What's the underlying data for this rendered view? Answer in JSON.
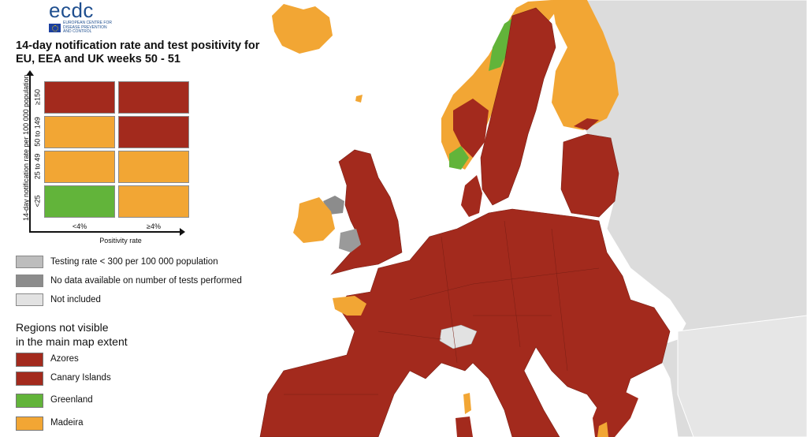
{
  "colors": {
    "red": "#a32a1d",
    "orange": "#f2a634",
    "green": "#62b43a",
    "light_grey": "#bdbdbd",
    "dark_grey": "#8c8c8c",
    "not_included": "#e2e2e2",
    "sea": "#ffffff",
    "outside": "#dcdcdc"
  },
  "logo": {
    "name": "ecdc",
    "subtitle": "EUROPEAN CENTRE FOR\nDISEASE PREVENTION\nAND CONTROL"
  },
  "title": "14-day notification rate and test positivity for EU, EEA and UK weeks 50 - 51",
  "matrix": {
    "y_axis_label": "14-day notification rate per 100 000 population",
    "x_axis_label": "Positivity rate",
    "rows": [
      "≥150",
      "50 to 149",
      "25 to 49",
      "<25"
    ],
    "cols": [
      "<4%",
      "≥4%"
    ],
    "cells": [
      [
        "red",
        "red"
      ],
      [
        "orange",
        "red"
      ],
      [
        "orange",
        "orange"
      ],
      [
        "green",
        "orange"
      ]
    ]
  },
  "legend": [
    {
      "label": "Testing rate < 300 per 100 000 population",
      "color": "light_grey"
    },
    {
      "label": "No data available on number of tests performed",
      "color": "dark_grey"
    },
    {
      "label": "Not included",
      "color": "not_included"
    }
  ],
  "regions": {
    "heading_line1": "Regions not visible",
    "heading_line2": "in the main map extent",
    "items": [
      {
        "label": "Azores",
        "color": "red"
      },
      {
        "label": "Canary Islands",
        "color": "red"
      },
      {
        "label": "Greenland",
        "color": "green"
      },
      {
        "label": "Madeira",
        "color": "orange"
      }
    ]
  }
}
